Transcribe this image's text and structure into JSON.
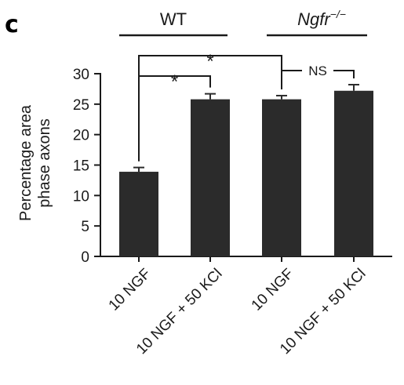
{
  "panel_label": "c",
  "groups": [
    {
      "label": "WT",
      "italic": false
    },
    {
      "label": "Ngfr",
      "superscript": "−/−",
      "italic": true
    }
  ],
  "significance": [
    {
      "from": 0,
      "to": 1,
      "label": "*"
    },
    {
      "from": 0,
      "to": 2,
      "label": "*"
    },
    {
      "from": 2,
      "to": 3,
      "label": "NS"
    }
  ],
  "colors": {
    "bar": "#2b2b2b",
    "text": "#1a1a1a",
    "axis": "#1a1a1a"
  },
  "chart_data": {
    "type": "bar",
    "title": "",
    "xlabel": "",
    "ylabel_lines": [
      "Percentage area",
      "phase axons"
    ],
    "categories": [
      "10 NGF",
      "10 NGF + 50 KCl",
      "10 NGF",
      "10 NGF + 50 KCl"
    ],
    "values": [
      13.9,
      25.8,
      25.8,
      27.2
    ],
    "errors": [
      0.7,
      0.9,
      0.6,
      1.0
    ],
    "ylim": [
      0,
      30
    ],
    "yticks": [
      0,
      5,
      10,
      15,
      20,
      25,
      30
    ],
    "grid": false,
    "legend": "none"
  }
}
